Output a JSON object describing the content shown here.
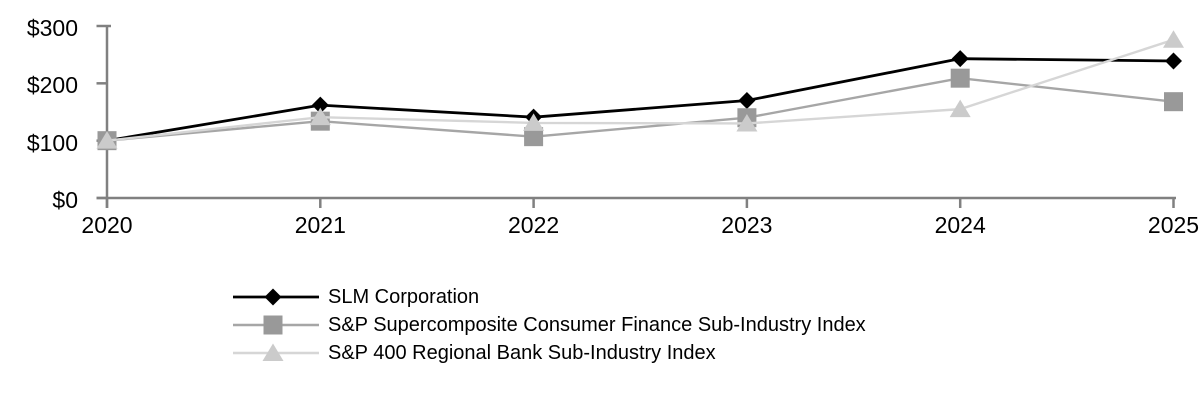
{
  "chart_data": {
    "type": "line",
    "title": "",
    "xlabel": "",
    "ylabel": "",
    "x": [
      "2020",
      "2021",
      "2022",
      "2023",
      "2024",
      "2025"
    ],
    "series": [
      {
        "name": "SLM Corporation",
        "marker": "diamond",
        "line_color": "#000000",
        "marker_color": "#000000",
        "values": [
          100,
          162,
          141,
          170,
          243,
          239
        ]
      },
      {
        "name": "S&P Supercomposite Consumer Finance Sub-Industry Index",
        "marker": "square",
        "line_color": "#a6a6a6",
        "marker_color": "#999999",
        "values": [
          100,
          134,
          107,
          140,
          209,
          168
        ]
      },
      {
        "name": "S&P 400 Regional Bank Sub-Industry Index",
        "marker": "triangle",
        "line_color": "#d6d6d6",
        "marker_color": "#cbcbcb",
        "values": [
          100,
          141,
          131,
          130,
          155,
          276
        ]
      }
    ],
    "y_tick_labels": [
      "$0",
      "$100",
      "$200",
      "$300"
    ],
    "y_tick_values": [
      0,
      100,
      200,
      300
    ],
    "ylim": [
      0,
      300
    ],
    "grid": false,
    "legend_position": "bottom-left",
    "colors": {
      "axis": "#808080",
      "text": "#000000",
      "background": "#ffffff"
    }
  }
}
